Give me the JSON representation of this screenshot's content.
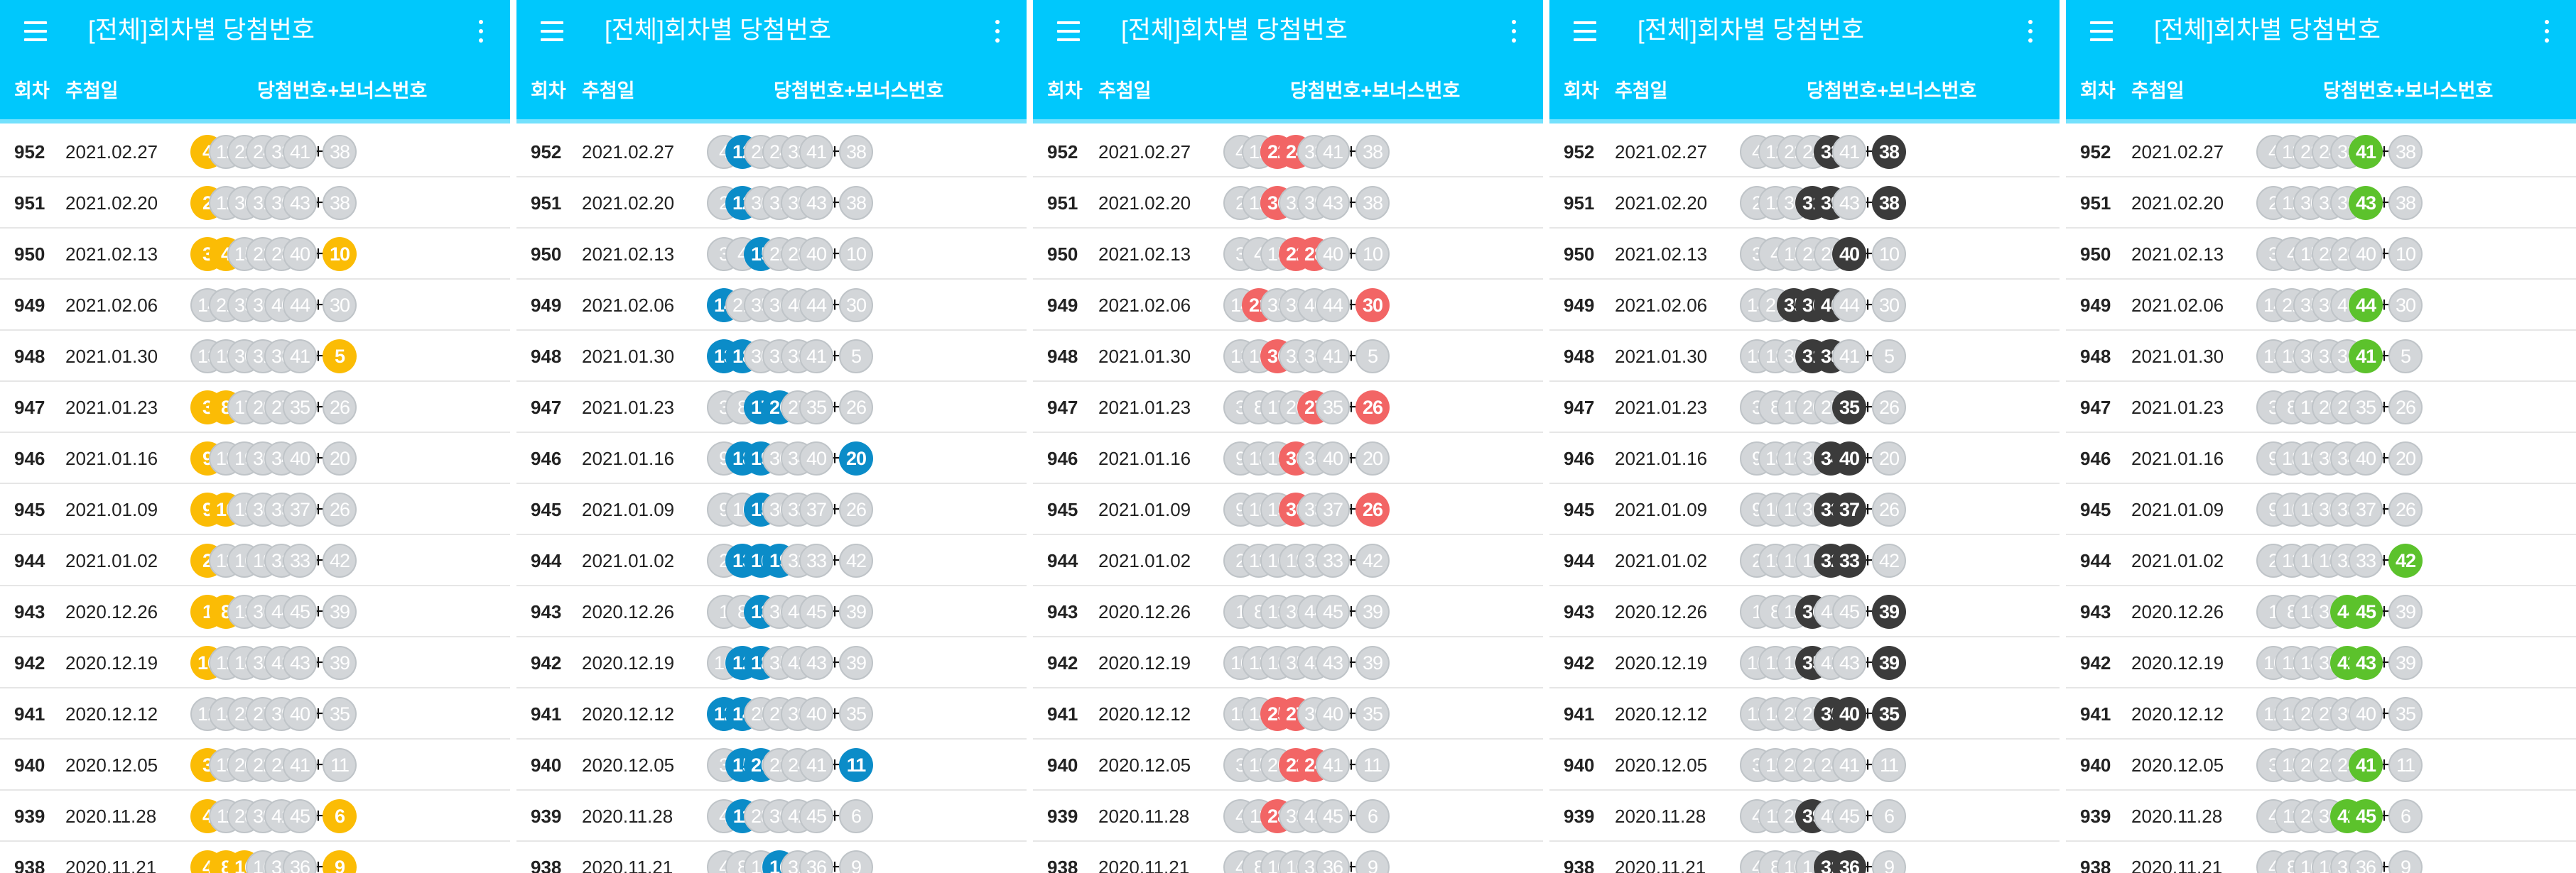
{
  "app": {
    "title": "[전체]회차별 당첨번호",
    "columns": {
      "round": "회차",
      "date": "추첨일",
      "numbers": "당첨번호+보너스번호"
    },
    "plus_sign": "+",
    "icons": {
      "menu": "hamburger-menu-icon",
      "more": "more-vertical-icon"
    },
    "colors": {
      "accent": "#00c8fc",
      "dim_ball": "#d3d6d9"
    }
  },
  "draws": [
    {
      "round": "952",
      "date": "2021.02.27",
      "numbers": [
        "4",
        "12",
        "22",
        "24",
        "33",
        "41"
      ],
      "bonus": "38"
    },
    {
      "round": "951",
      "date": "2021.02.20",
      "numbers": [
        "2",
        "12",
        "30",
        "31",
        "39",
        "43"
      ],
      "bonus": "38"
    },
    {
      "round": "950",
      "date": "2021.02.13",
      "numbers": [
        "3",
        "4",
        "15",
        "22",
        "28",
        "40"
      ],
      "bonus": "10"
    },
    {
      "round": "949",
      "date": "2021.02.06",
      "numbers": [
        "14",
        "21",
        "35",
        "36",
        "40",
        "44"
      ],
      "bonus": "30"
    },
    {
      "round": "948",
      "date": "2021.01.30",
      "numbers": [
        "13",
        "18",
        "30",
        "31",
        "38",
        "41"
      ],
      "bonus": "5"
    },
    {
      "round": "947",
      "date": "2021.01.23",
      "numbers": [
        "3",
        "8",
        "17",
        "20",
        "27",
        "35"
      ],
      "bonus": "26"
    },
    {
      "round": "946",
      "date": "2021.01.16",
      "numbers": [
        "9",
        "18",
        "19",
        "30",
        "34",
        "40"
      ],
      "bonus": "20"
    },
    {
      "round": "945",
      "date": "2021.01.09",
      "numbers": [
        "9",
        "10",
        "15",
        "30",
        "33",
        "37"
      ],
      "bonus": "26"
    },
    {
      "round": "944",
      "date": "2021.01.02",
      "numbers": [
        "2",
        "13",
        "16",
        "19",
        "32",
        "33"
      ],
      "bonus": "42"
    },
    {
      "round": "943",
      "date": "2020.12.26",
      "numbers": [
        "1",
        "8",
        "13",
        "36",
        "44",
        "45"
      ],
      "bonus": "39"
    },
    {
      "round": "942",
      "date": "2020.12.19",
      "numbers": [
        "10",
        "12",
        "18",
        "35",
        "42",
        "43"
      ],
      "bonus": "39"
    },
    {
      "round": "941",
      "date": "2020.12.12",
      "numbers": [
        "12",
        "14",
        "25",
        "27",
        "39",
        "40"
      ],
      "bonus": "35"
    },
    {
      "round": "940",
      "date": "2020.12.05",
      "numbers": [
        "3",
        "15",
        "20",
        "22",
        "24",
        "41"
      ],
      "bonus": "11"
    },
    {
      "round": "939",
      "date": "2020.11.28",
      "numbers": [
        "4",
        "11",
        "28",
        "39",
        "42",
        "45"
      ],
      "bonus": "6"
    },
    {
      "round": "938",
      "date": "2020.11.21",
      "numbers": [
        "4",
        "8",
        "10",
        "16",
        "31",
        "36"
      ],
      "bonus": "9"
    }
  ],
  "screens": [
    {
      "name": "screen-range-1-10",
      "highlight_color": "#fbbc05",
      "highlight_numbers": [
        "1",
        "2",
        "3",
        "4",
        "5",
        "6",
        "7",
        "8",
        "9",
        "10"
      ]
    },
    {
      "name": "screen-range-11-20",
      "highlight_color": "#0b8cc8",
      "highlight_numbers": [
        "11",
        "12",
        "13",
        "14",
        "15",
        "16",
        "17",
        "18",
        "19",
        "20"
      ]
    },
    {
      "name": "screen-range-21-30",
      "highlight_color": "#f26565",
      "highlight_numbers": [
        "21",
        "22",
        "23",
        "24",
        "25",
        "26",
        "27",
        "28",
        "29",
        "30"
      ]
    },
    {
      "name": "screen-range-31-40",
      "highlight_color": "#3b3b3b",
      "highlight_numbers": [
        "31",
        "32",
        "33",
        "34",
        "35",
        "36",
        "37",
        "38",
        "39",
        "40"
      ]
    },
    {
      "name": "screen-range-41-45",
      "highlight_color": "#5cc22c",
      "highlight_numbers": [
        "41",
        "42",
        "43",
        "44",
        "45"
      ]
    }
  ]
}
